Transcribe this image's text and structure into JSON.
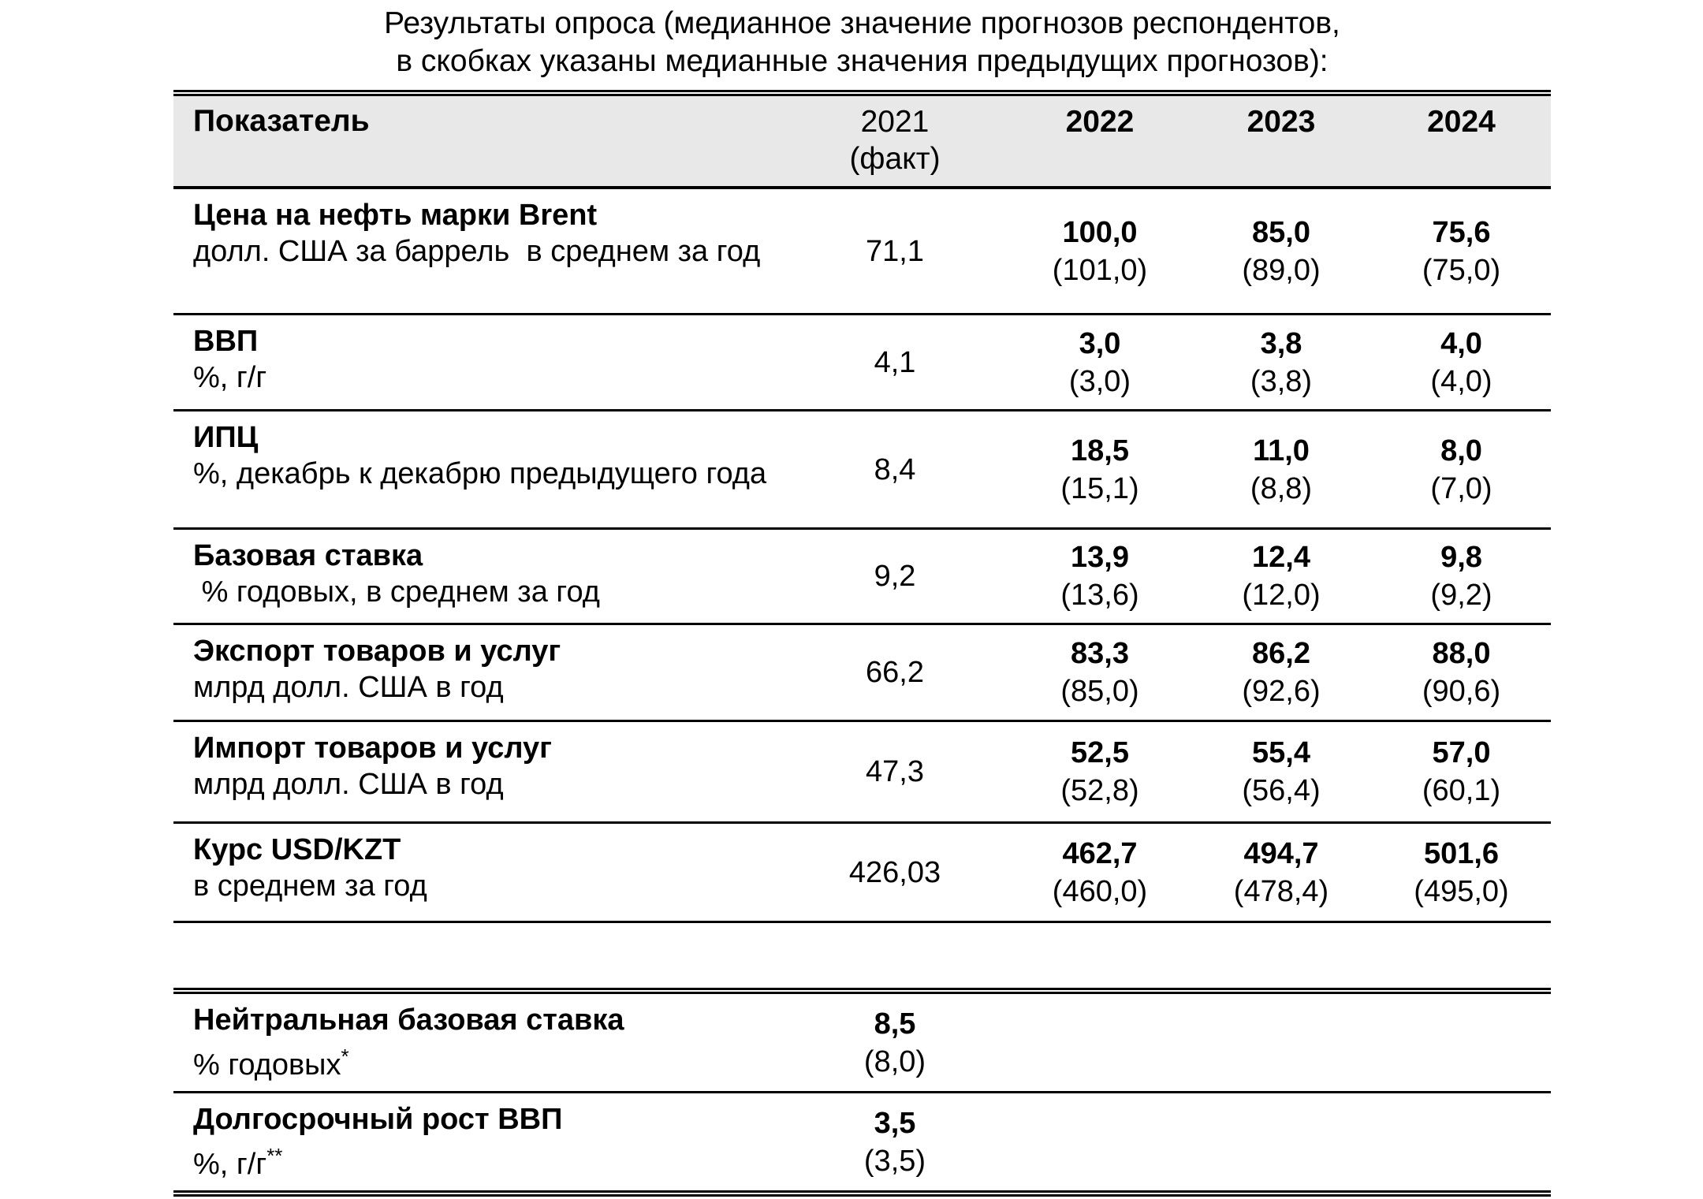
{
  "document": {
    "title_line1": "Результаты опроса (медианное значение прогнозов респондентов,",
    "title_line2": "в скобках указаны медианные значения предыдущих прогнозов):"
  },
  "colors": {
    "header_bg": "#e8e8e8",
    "border": "#000000",
    "text": "#000000"
  },
  "table": {
    "header": {
      "indicator": "Показатель",
      "fact_year": "2021",
      "fact_note": "(факт)",
      "years": [
        "2022",
        "2023",
        "2024"
      ]
    },
    "rows": [
      {
        "name": "Цена на нефть марки Brent",
        "unit": "долл. США за баррель  в среднем за год",
        "fact": "71,1",
        "forecasts": [
          {
            "median": "100,0",
            "previous": "(101,0)"
          },
          {
            "median": "85,0",
            "previous": "(89,0)"
          },
          {
            "median": "75,6",
            "previous": "(75,0)"
          }
        ]
      },
      {
        "name": "ВВП",
        "unit": "%, г/г",
        "fact": "4,1",
        "forecasts": [
          {
            "median": "3,0",
            "previous": "(3,0)"
          },
          {
            "median": "3,8",
            "previous": "(3,8)"
          },
          {
            "median": "4,0",
            "previous": "(4,0)"
          }
        ]
      },
      {
        "name": "ИПЦ",
        "unit": "%, декабрь к декабрю предыдущего года",
        "fact": "8,4",
        "forecasts": [
          {
            "median": "18,5",
            "previous": "(15,1)"
          },
          {
            "median": "11,0",
            "previous": "(8,8)"
          },
          {
            "median": "8,0",
            "previous": "(7,0)"
          }
        ]
      },
      {
        "name": "Базовая ставка",
        "unit": " % годовых, в среднем за год",
        "fact": "9,2",
        "forecasts": [
          {
            "median": "13,9",
            "previous": "(13,6)"
          },
          {
            "median": "12,4",
            "previous": "(12,0)"
          },
          {
            "median": "9,8",
            "previous": "(9,2)"
          }
        ]
      },
      {
        "name": "Экспорт товаров и услуг",
        "unit": "млрд долл. США в год",
        "fact": "66,2",
        "forecasts": [
          {
            "median": "83,3",
            "previous": "(85,0)"
          },
          {
            "median": "86,2",
            "previous": "(92,6)"
          },
          {
            "median": "88,0",
            "previous": "(90,6)"
          }
        ]
      },
      {
        "name": "Импорт товаров и услуг",
        "unit": "млрд долл. США в год",
        "fact": "47,3",
        "forecasts": [
          {
            "median": "52,5",
            "previous": "(52,8)"
          },
          {
            "median": "55,4",
            "previous": "(56,4)"
          },
          {
            "median": "57,0",
            "previous": "(60,1)"
          }
        ]
      },
      {
        "name": "Курс USD/KZT",
        "unit": "в среднем за год",
        "fact": "426,03",
        "forecasts": [
          {
            "median": "462,7",
            "previous": "(460,0)"
          },
          {
            "median": "494,7",
            "previous": "(478,4)"
          },
          {
            "median": "501,6",
            "previous": "(495,0)"
          }
        ]
      }
    ]
  },
  "long_term": {
    "rows": [
      {
        "name": "Нейтральная базовая ставка",
        "unit": "% годовых",
        "unit_sup": "*",
        "median": "8,5",
        "previous": "(8,0)"
      },
      {
        "name": "Долгосрочный рост ВВП",
        "unit": "%, г/г",
        "unit_sup": "**",
        "median": "3,5",
        "previous": "(3,5)"
      }
    ]
  }
}
